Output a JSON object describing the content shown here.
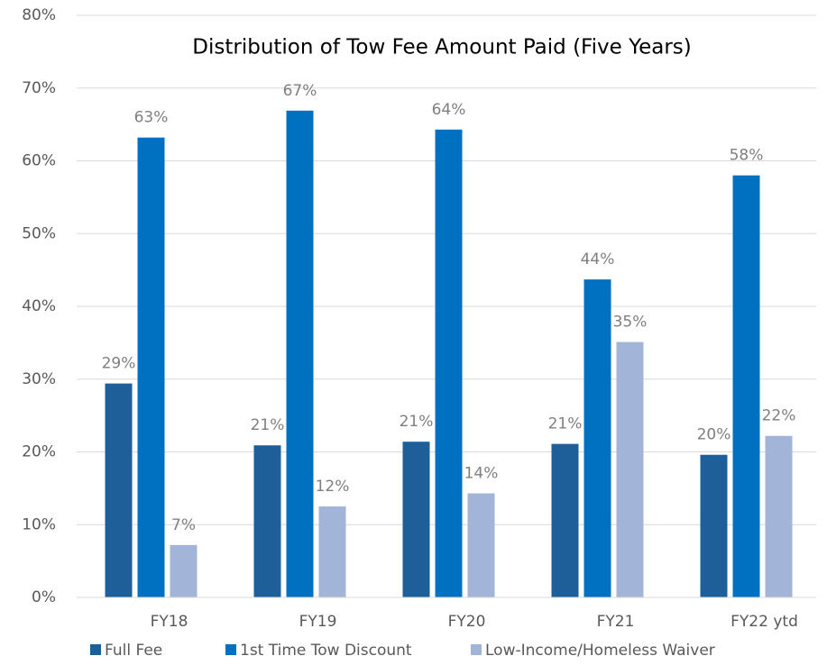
{
  "chart_data": {
    "type": "bar",
    "title": "Distribution of Tow Fee Amount Paid (Five Years)",
    "categories": [
      "FY18",
      "FY19",
      "FY20",
      "FY21",
      "FY22 ytd"
    ],
    "series": [
      {
        "name": "Full Fee",
        "color": "#1f5f99",
        "values": [
          29.4,
          20.9,
          21.4,
          21.1,
          19.6
        ],
        "value_labels": [
          "29%",
          "21%",
          "21%",
          "21%",
          "20%"
        ]
      },
      {
        "name": "1st Time Tow Discount",
        "color": "#0070c0",
        "values": [
          63.2,
          66.9,
          64.3,
          43.7,
          58.0
        ],
        "value_labels": [
          "63%",
          "67%",
          "64%",
          "44%",
          "58%"
        ]
      },
      {
        "name": "Low-Income/Homeless Waiver",
        "color": "#a2b4d8",
        "values": [
          7.2,
          12.5,
          14.3,
          35.1,
          22.2
        ],
        "value_labels": [
          "7%",
          "12%",
          "14%",
          "35%",
          "22%"
        ]
      }
    ],
    "ylim": [
      0,
      80
    ],
    "yticks": [
      {
        "value": 0,
        "label": "0%"
      },
      {
        "value": 10,
        "label": "10%"
      },
      {
        "value": 20,
        "label": "20%"
      },
      {
        "value": 30,
        "label": "30%"
      },
      {
        "value": 40,
        "label": "40%"
      },
      {
        "value": 50,
        "label": "50%"
      },
      {
        "value": 60,
        "label": "60%"
      },
      {
        "value": 70,
        "label": "70%"
      },
      {
        "value": 80,
        "label": "80%"
      }
    ],
    "grid": true,
    "legend": "bottom"
  }
}
